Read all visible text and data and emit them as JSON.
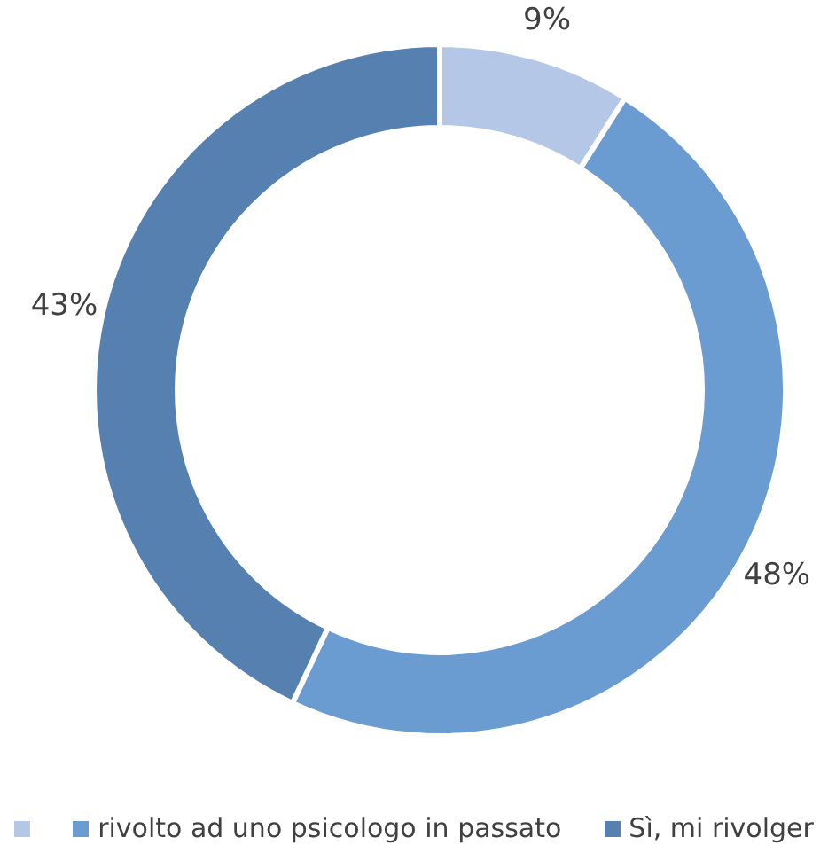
{
  "chart_data": {
    "type": "donut",
    "categories": [
      null,
      "rivolto ad uno psicologo in passato",
      "Sì, mi rivolger"
    ],
    "values": [
      9,
      48,
      43
    ],
    "value_labels": [
      "9%",
      "48%",
      "43%"
    ],
    "colors": [
      "#b4c7e7",
      "#6a9bd1",
      "#5580b0"
    ],
    "legend": "bottom"
  }
}
